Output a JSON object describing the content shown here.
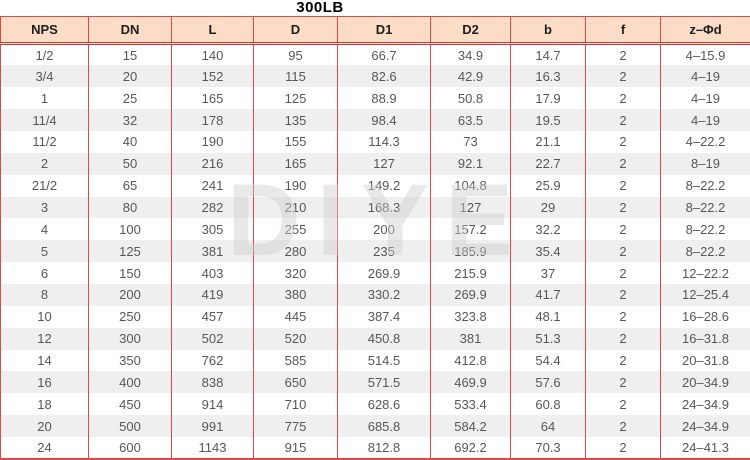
{
  "title": "300LB",
  "watermark": "DIYE",
  "colors": {
    "header_bg": "#fbdcc6",
    "border_red": "#df4a48",
    "rule_red": "#c83a3a",
    "alt_row": "#efefef",
    "text_gray": "#55575a",
    "header_text": "#1e1e1e",
    "title_color": "#000000",
    "watermark_gray": "#cfcfcf"
  },
  "chart_data": {
    "type": "table",
    "title": "300LB",
    "columns": [
      "NPS",
      "DN",
      "L",
      "D",
      "D1",
      "D2",
      "b",
      "f",
      "z–Φd"
    ],
    "rows": [
      [
        "1/2",
        "15",
        "140",
        "95",
        "66.7",
        "34.9",
        "14.7",
        "2",
        "4–15.9"
      ],
      [
        "3/4",
        "20",
        "152",
        "115",
        "82.6",
        "42.9",
        "16.3",
        "2",
        "4–19"
      ],
      [
        "1",
        "25",
        "165",
        "125",
        "88.9",
        "50.8",
        "17.9",
        "2",
        "4–19"
      ],
      [
        "11/4",
        "32",
        "178",
        "135",
        "98.4",
        "63.5",
        "19.5",
        "2",
        "4–19"
      ],
      [
        "11/2",
        "40",
        "190",
        "155",
        "114.3",
        "73",
        "21.1",
        "2",
        "4–22.2"
      ],
      [
        "2",
        "50",
        "216",
        "165",
        "127",
        "92.1",
        "22.7",
        "2",
        "8–19"
      ],
      [
        "21/2",
        "65",
        "241",
        "190",
        "149.2",
        "104.8",
        "25.9",
        "2",
        "8–22.2"
      ],
      [
        "3",
        "80",
        "282",
        "210",
        "168.3",
        "127",
        "29",
        "2",
        "8–22.2"
      ],
      [
        "4",
        "100",
        "305",
        "255",
        "200",
        "157.2",
        "32.2",
        "2",
        "8–22.2"
      ],
      [
        "5",
        "125",
        "381",
        "280",
        "235",
        "185.9",
        "35.4",
        "2",
        "8–22.2"
      ],
      [
        "6",
        "150",
        "403",
        "320",
        "269.9",
        "215.9",
        "37",
        "2",
        "12–22.2"
      ],
      [
        "8",
        "200",
        "419",
        "380",
        "330.2",
        "269.9",
        "41.7",
        "2",
        "12–25.4"
      ],
      [
        "10",
        "250",
        "457",
        "445",
        "387.4",
        "323.8",
        "48.1",
        "2",
        "16–28.6"
      ],
      [
        "12",
        "300",
        "502",
        "520",
        "450.8",
        "381",
        "51.3",
        "2",
        "16–31.8"
      ],
      [
        "14",
        "350",
        "762",
        "585",
        "514.5",
        "412.8",
        "54.4",
        "2",
        "20–31.8"
      ],
      [
        "16",
        "400",
        "838",
        "650",
        "571.5",
        "469.9",
        "57.6",
        "2",
        "20–34.9"
      ],
      [
        "18",
        "450",
        "914",
        "710",
        "628.6",
        "533.4",
        "60.8",
        "2",
        "24–34.9"
      ],
      [
        "20",
        "500",
        "991",
        "775",
        "685.8",
        "584.2",
        "64",
        "2",
        "24–34.9"
      ],
      [
        "24",
        "600",
        "1143",
        "915",
        "812.8",
        "692.2",
        "70.3",
        "2",
        "24–41.3"
      ]
    ]
  }
}
